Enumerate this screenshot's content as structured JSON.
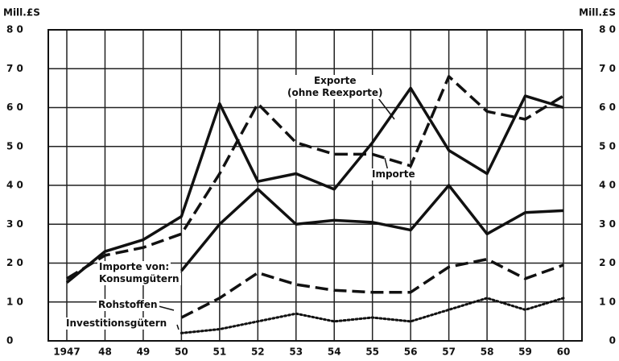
{
  "chart_data": {
    "type": "line",
    "y_label": "Mill.£S",
    "y2_label": "Mill.£S",
    "annotation": "Importe von:",
    "categories": [
      "1947",
      "48",
      "49",
      "50",
      "51",
      "52",
      "53",
      "54",
      "55",
      "56",
      "57",
      "58",
      "59",
      "60"
    ],
    "series": [
      {
        "name": "Importe",
        "color": "#111111",
        "style": "solid",
        "values": [
          15,
          23,
          26,
          32,
          61,
          41,
          43,
          39,
          51,
          65,
          49,
          43,
          63,
          60
        ]
      },
      {
        "name": "Exporte\n(ohne Reexporte)",
        "color": "#111111",
        "style": "dashed",
        "values": [
          16,
          22,
          24,
          27.5,
          43,
          61,
          51,
          48,
          48,
          45,
          68,
          59,
          57,
          63
        ]
      },
      {
        "name": "Konsumgütern",
        "color": "#111111",
        "style": "solid",
        "values": [
          null,
          null,
          null,
          18,
          30,
          39,
          30,
          31,
          30.5,
          28.5,
          40,
          27.5,
          33,
          33.5
        ]
      },
      {
        "name": "Rohstoffen",
        "color": "#111111",
        "style": "dashed",
        "values": [
          null,
          null,
          null,
          6,
          11,
          17.5,
          14.5,
          13,
          12.5,
          12.5,
          19,
          21,
          16,
          19.5
        ]
      },
      {
        "name": "Investitionsgütern",
        "color": "#111111",
        "style": "dotted",
        "values": [
          null,
          null,
          null,
          2,
          3,
          5,
          7,
          5,
          6,
          5,
          8,
          11,
          8,
          11
        ]
      }
    ],
    "ylim": [
      0,
      80
    ],
    "yticks": [
      0,
      {
        "value": 10,
        "label": "1 0"
      },
      {
        "value": 20,
        "label": "2 0"
      },
      {
        "value": 30,
        "label": "3 0"
      },
      {
        "value": 40,
        "label": "4 0"
      },
      {
        "value": 50,
        "label": "5 0"
      },
      {
        "value": 60,
        "label": "6 0"
      },
      {
        "value": 70,
        "label": "7 0"
      },
      {
        "value": 80,
        "label": "8 0"
      }
    ],
    "y2lim": [
      0,
      80
    ],
    "y2ticks": [
      0,
      {
        "value": 10,
        "label": "1 0"
      },
      {
        "value": 20,
        "label": "2 0"
      },
      {
        "value": 30,
        "label": "3 0"
      },
      {
        "value": 40,
        "label": "4 0"
      },
      {
        "value": 50,
        "label": "5 0"
      },
      {
        "value": 60,
        "label": "6 0"
      },
      {
        "value": 70,
        "label": "7 0"
      },
      {
        "value": 80,
        "label": "8 0"
      }
    ],
    "grid": true
  }
}
